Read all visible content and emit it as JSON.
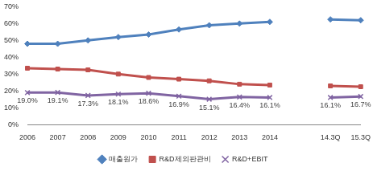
{
  "chart_data": {
    "type": "line",
    "categories": [
      "2006",
      "2007",
      "2008",
      "2009",
      "2010",
      "2011",
      "2012",
      "2013",
      "2014",
      null,
      "14.3Q",
      "15.3Q"
    ],
    "series": [
      {
        "name": "매출원가",
        "color": "#4F81BD",
        "marker": "diamond",
        "values": [
          48,
          48,
          50,
          52,
          53.5,
          56.5,
          59,
          60,
          61,
          null,
          62.5,
          62
        ]
      },
      {
        "name": "R&D제외판관비",
        "color": "#C0504D",
        "marker": "square",
        "values": [
          33.5,
          33,
          32.5,
          30,
          28,
          27,
          26,
          24,
          23.5,
          null,
          23,
          22.5
        ]
      },
      {
        "name": "R&D+EBIT",
        "color": "#8064A2",
        "marker": "x",
        "data_labels": true,
        "values": [
          19.0,
          19.1,
          17.3,
          18.1,
          18.6,
          16.9,
          15.1,
          16.4,
          16.1,
          null,
          16.1,
          16.7
        ],
        "value_labels": [
          "19.0%",
          "19.1%",
          "17.3%",
          "18.1%",
          "18.6%",
          "16.9%",
          "15.1%",
          "16.4%",
          "16.1%",
          null,
          "16.1%",
          "16.7%"
        ]
      }
    ],
    "ylim": [
      0,
      70
    ],
    "yticks": [
      {
        "value": 0,
        "label": "0%"
      },
      {
        "value": 10,
        "label": "10%"
      },
      {
        "value": 20,
        "label": "20%"
      },
      {
        "value": 30,
        "label": "30%"
      },
      {
        "value": 40,
        "label": "40%"
      },
      {
        "value": 50,
        "label": "50%"
      },
      {
        "value": 60,
        "label": "60%"
      },
      {
        "value": 70,
        "label": "70%"
      }
    ],
    "grid": false,
    "legend": "bottom"
  }
}
